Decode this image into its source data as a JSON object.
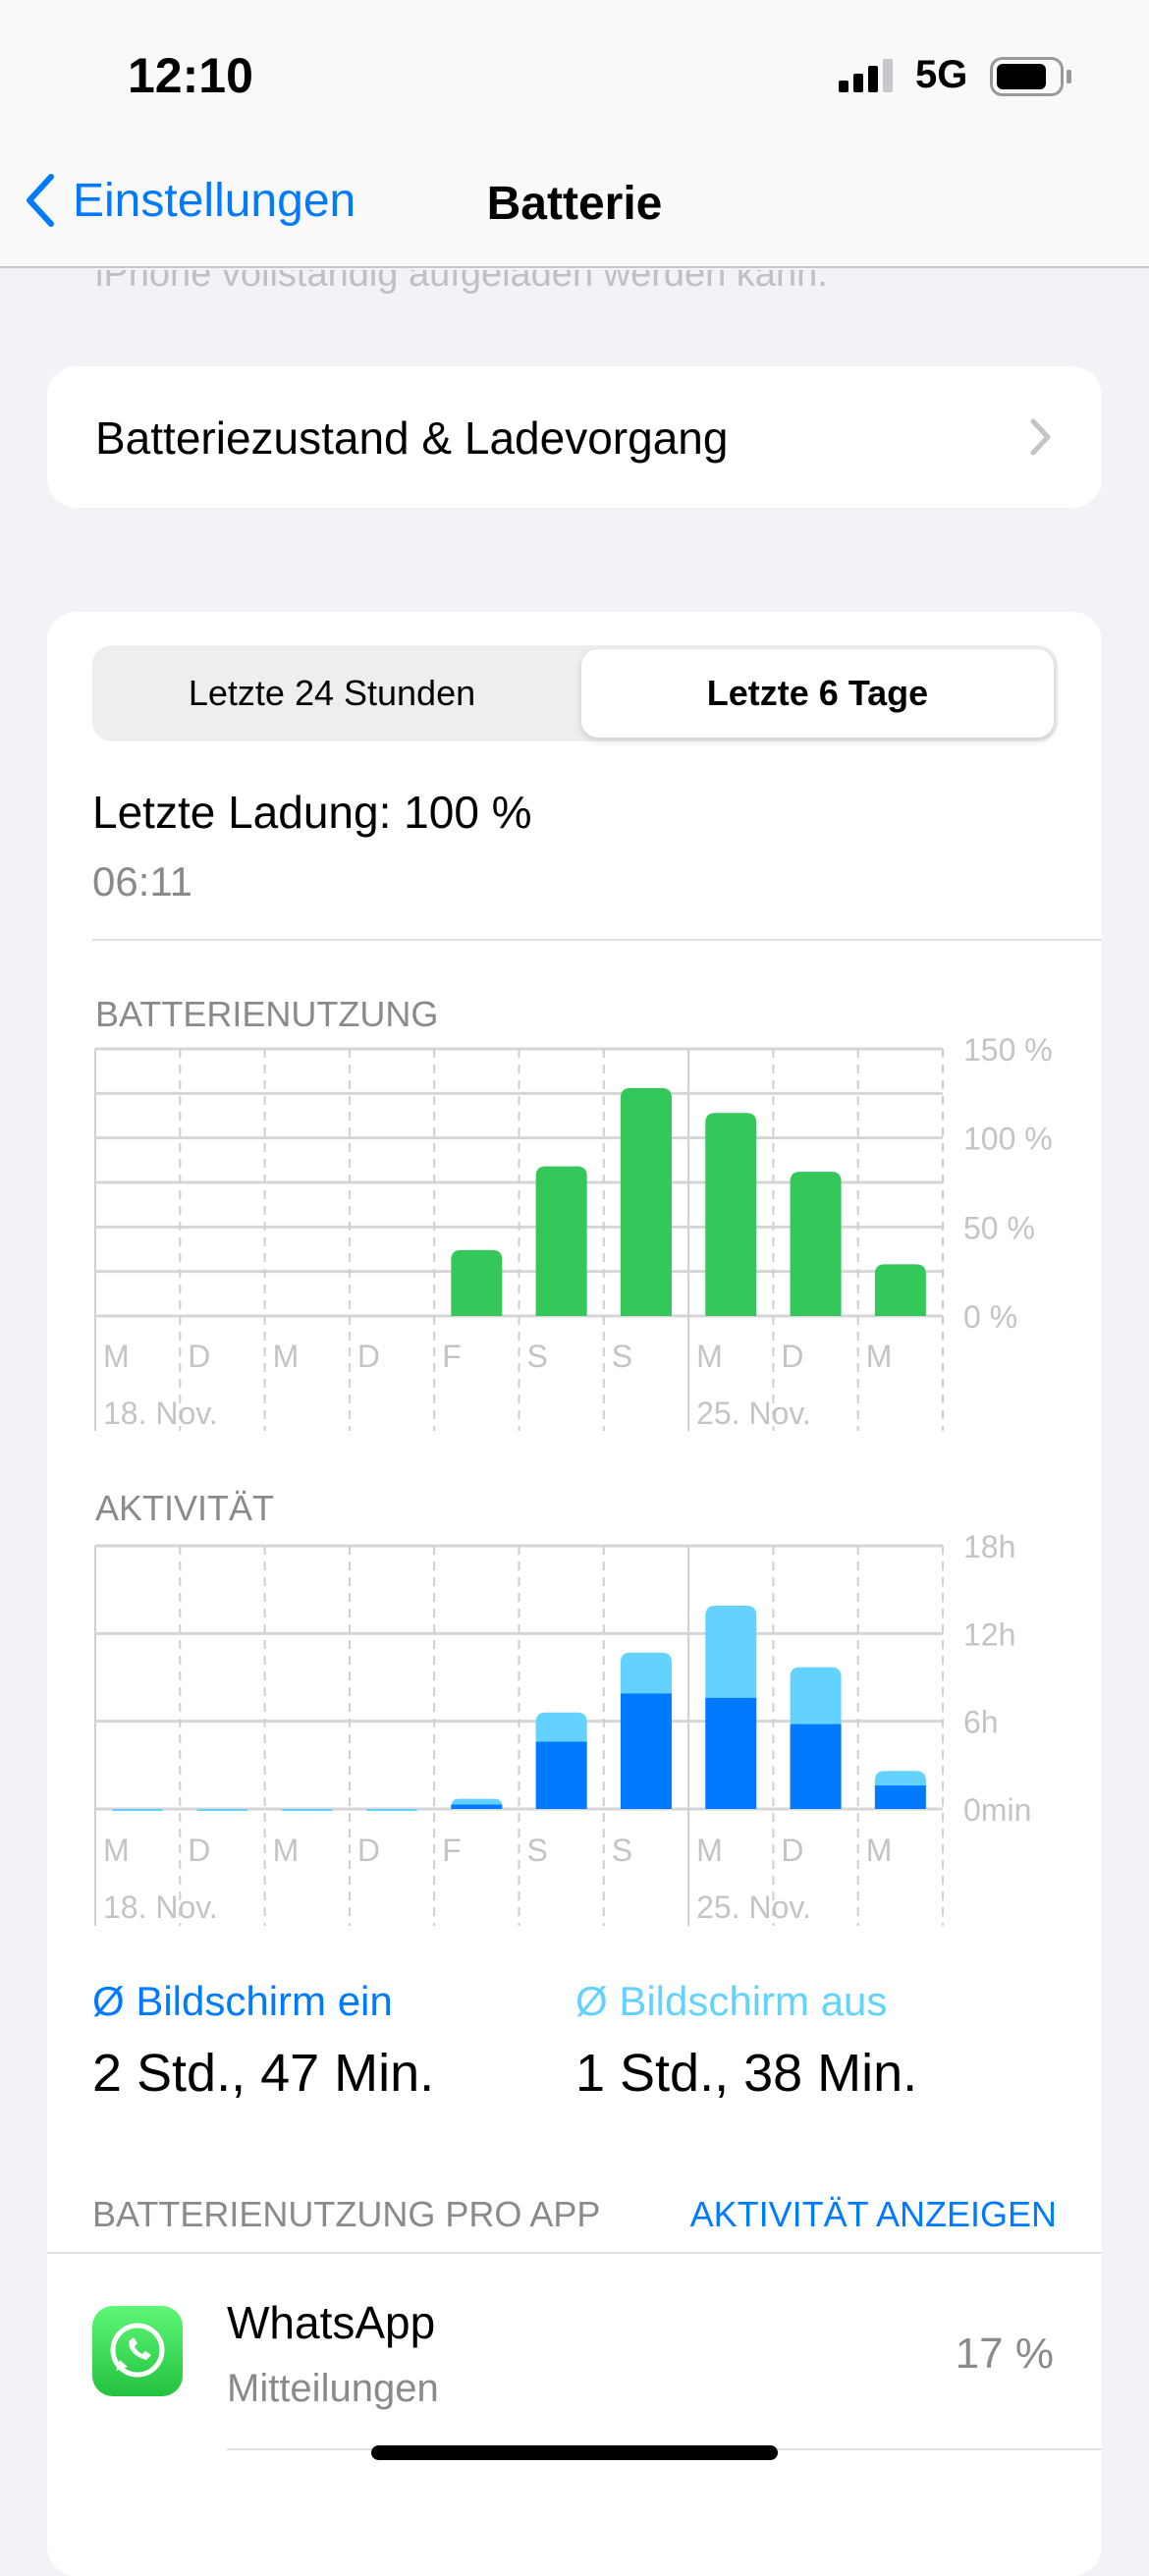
{
  "status": {
    "time": "12:10",
    "network": "5G",
    "battery_level": 0.75
  },
  "nav": {
    "back_label": "Einstellungen",
    "title": "Batterie"
  },
  "scrolled_text": "iPhone vollständig aufgeladen werden kann.",
  "health_row": {
    "label": "Batteriezustand & Ladevorgang"
  },
  "segments": {
    "options": [
      "Letzte 24 Stunden",
      "Letzte 6 Tage"
    ],
    "selected": "Letzte 6 Tage"
  },
  "last_charge": {
    "label": "Letzte Ladung: 100 %",
    "time": "06:11"
  },
  "colors": {
    "green": "#34c759",
    "screen_on": "#007aff",
    "screen_off": "#64d2ff",
    "accent": "#007aff"
  },
  "chart_data": [
    {
      "type": "bar",
      "title": "BATTERIENUTZUNG",
      "categories": [
        "M",
        "D",
        "M",
        "D",
        "F",
        "S",
        "S",
        "M",
        "D",
        "M"
      ],
      "date_labels": [
        "18. Nov.",
        "25. Nov."
      ],
      "yticks": [
        "0 %",
        "50 %",
        "100 %",
        "150 %"
      ],
      "ylim": [
        0,
        150
      ],
      "values": [
        0,
        0,
        0,
        0,
        37,
        84,
        128,
        114,
        81,
        29
      ],
      "grid": true
    },
    {
      "type": "bar",
      "stacked": true,
      "title": "AKTIVITÄT",
      "categories": [
        "M",
        "D",
        "M",
        "D",
        "F",
        "S",
        "S",
        "M",
        "D",
        "M"
      ],
      "date_labels": [
        "18. Nov.",
        "25. Nov."
      ],
      "yticks": [
        "0min",
        "6h",
        "12h",
        "18h"
      ],
      "ylim": [
        0,
        18
      ],
      "grid": true,
      "series": [
        {
          "name": "Ø Bildschirm ein",
          "values": [
            0,
            0,
            0,
            0,
            0.3,
            4.6,
            7.9,
            7.6,
            5.8,
            1.6
          ]
        },
        {
          "name": "Ø Bildschirm aus",
          "values": [
            0,
            0,
            0,
            0,
            0.4,
            2.0,
            2.8,
            6.3,
            3.9,
            1.0
          ]
        }
      ]
    }
  ],
  "averages": {
    "on_label": "Ø Bildschirm ein",
    "on_value": "2 Std., 47 Min.",
    "off_label": "Ø Bildschirm aus",
    "off_value": "1 Std., 38 Min."
  },
  "per_app": {
    "header": "BATTERIENUTZUNG PRO APP",
    "action": "AKTIVITÄT ANZEIGEN",
    "apps": [
      {
        "name": "WhatsApp",
        "subtitle": "Mitteilungen",
        "percent": "17 %",
        "icon": "whatsapp-icon"
      }
    ]
  }
}
